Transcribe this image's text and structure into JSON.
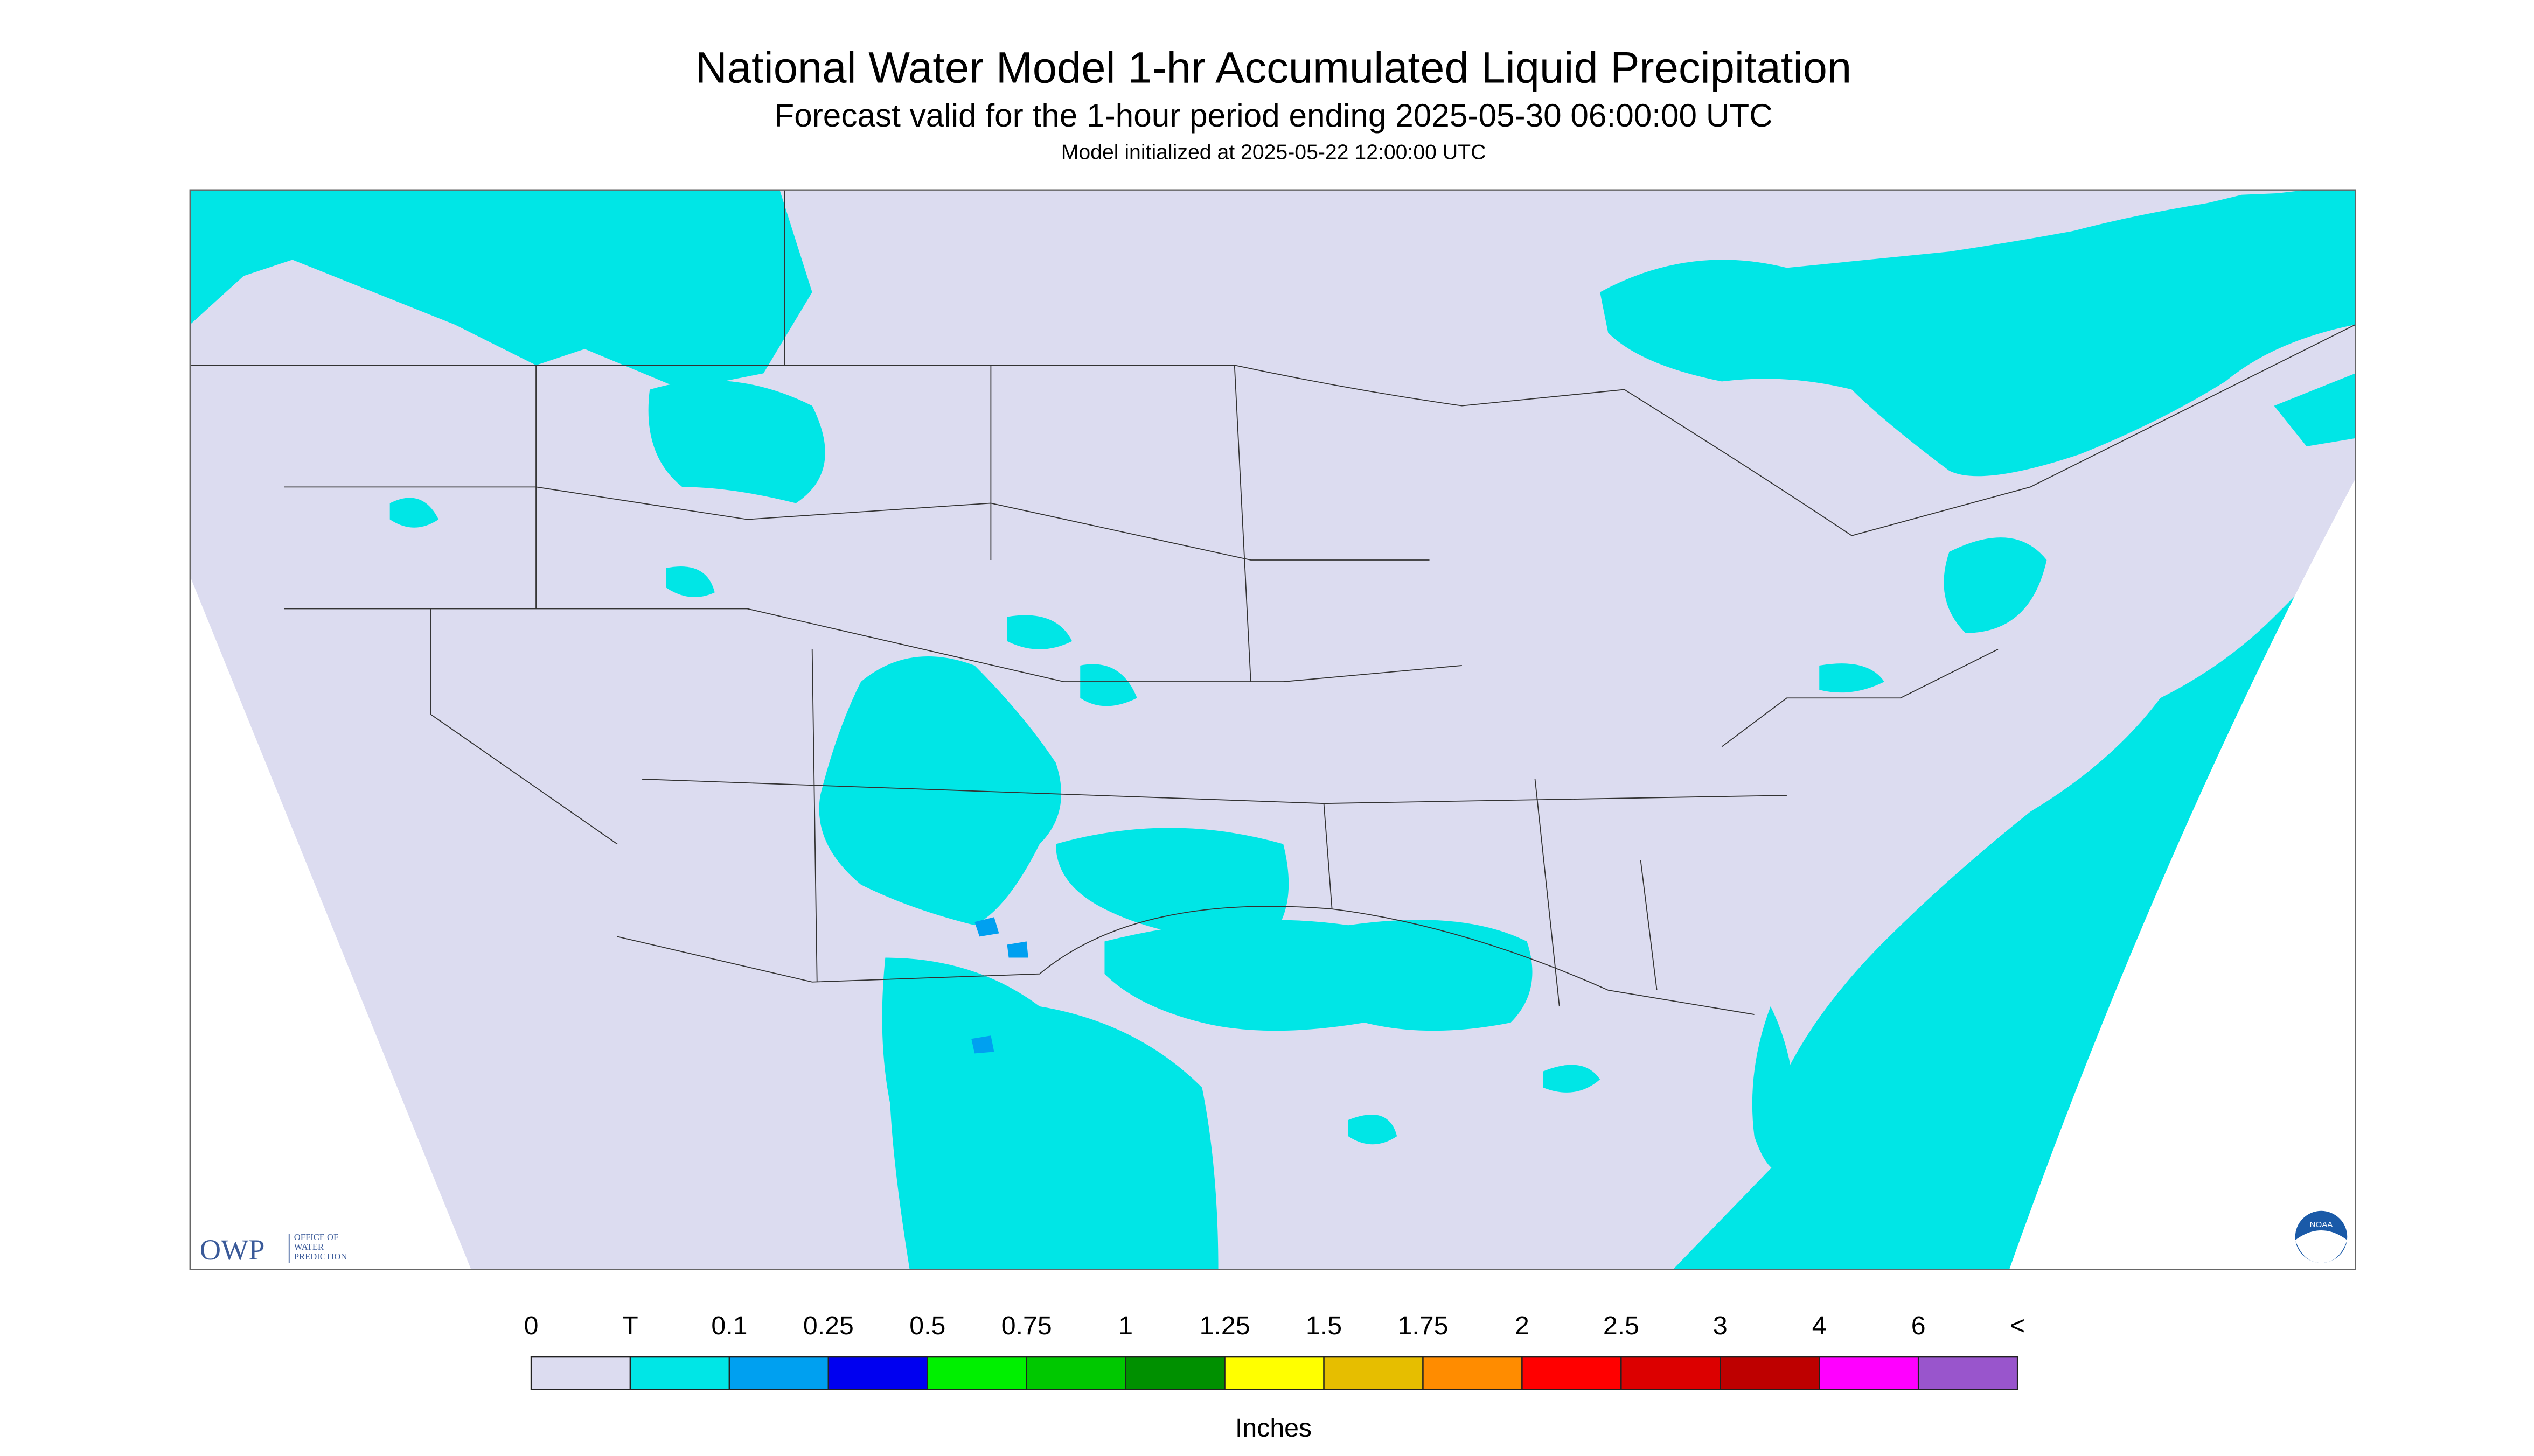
{
  "header": {
    "title": "National Water Model 1-hr Accumulated Liquid Precipitation",
    "subtitle": "Forecast valid for the 1-hour period ending 2025-05-30 06:00:00 UTC",
    "initialized": "Model initialized at 2025-05-22 12:00:00 UTC"
  },
  "logos": {
    "owp": "OWP",
    "owp_lines": [
      "OFFICE OF",
      "WATER",
      "PREDICTION"
    ],
    "noaa": "NOAA"
  },
  "legend": {
    "labels": [
      "0",
      "T",
      "0.1",
      "0.25",
      "0.5",
      "0.75",
      "1",
      "1.25",
      "1.5",
      "1.75",
      "2",
      "2.5",
      "3",
      "4",
      "6",
      "<"
    ],
    "colors": [
      "#dcdcf0",
      "#00e6e6",
      "#00a0f0",
      "#0000f0",
      "#00f000",
      "#00c800",
      "#009000",
      "#ffff00",
      "#e6be00",
      "#ff8c00",
      "#ff0000",
      "#dc0000",
      "#be0000",
      "#ff00ff",
      "#9955cc"
    ],
    "unit": "Inches"
  }
}
